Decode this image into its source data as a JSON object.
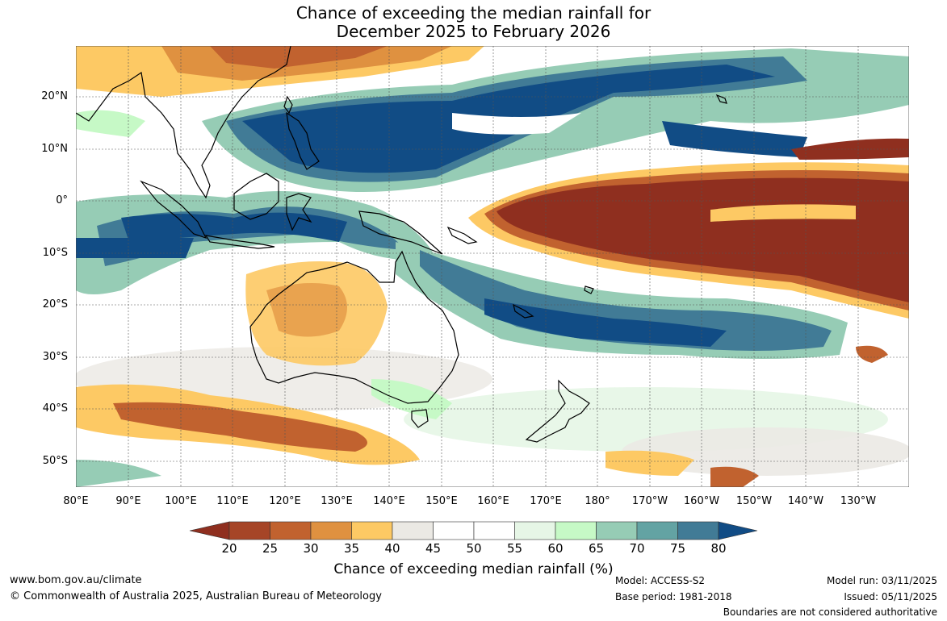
{
  "title": {
    "line1": "Chance of exceeding the median rainfall for",
    "line2": "December 2025 to February 2026"
  },
  "lat_labels": [
    "20°N",
    "10°N",
    "0°",
    "10°S",
    "20°S",
    "30°S",
    "40°S",
    "50°S"
  ],
  "lon_labels": [
    "80°E",
    "90°E",
    "100°E",
    "110°E",
    "120°E",
    "130°E",
    "140°E",
    "150°E",
    "160°E",
    "170°E",
    "180°",
    "170°W",
    "160°W",
    "150°W",
    "140°W",
    "130°W"
  ],
  "colorbar": {
    "ticks": [
      "20",
      "25",
      "30",
      "35",
      "40",
      "45",
      "50",
      "55",
      "60",
      "65",
      "70",
      "75",
      "80"
    ],
    "colors": [
      "#a64527",
      "#c1622f",
      "#df9140",
      "#fdc964",
      "#ebe9e4",
      "#ffffff",
      "#ffffff",
      "#e6f6e6",
      "#c6f9c6",
      "#96ccb5",
      "#63a3a3",
      "#417b96"
    ],
    "low_color": "#8f2f1f",
    "high_color": "#114c85",
    "title": "Chance of exceeding median rainfall (%)"
  },
  "footer": {
    "url": "www.bom.gov.au/climate",
    "copyright": "© Commonwealth of Australia 2025, Australian Bureau of Meteorology",
    "model": "Model: ACCESS-S2",
    "base_period": "Base period: 1981-2018",
    "model_run": "Model run: 03/11/2025",
    "issued": "Issued: 05/11/2025",
    "disclaimer": "Boundaries are not considered authoritative"
  }
}
